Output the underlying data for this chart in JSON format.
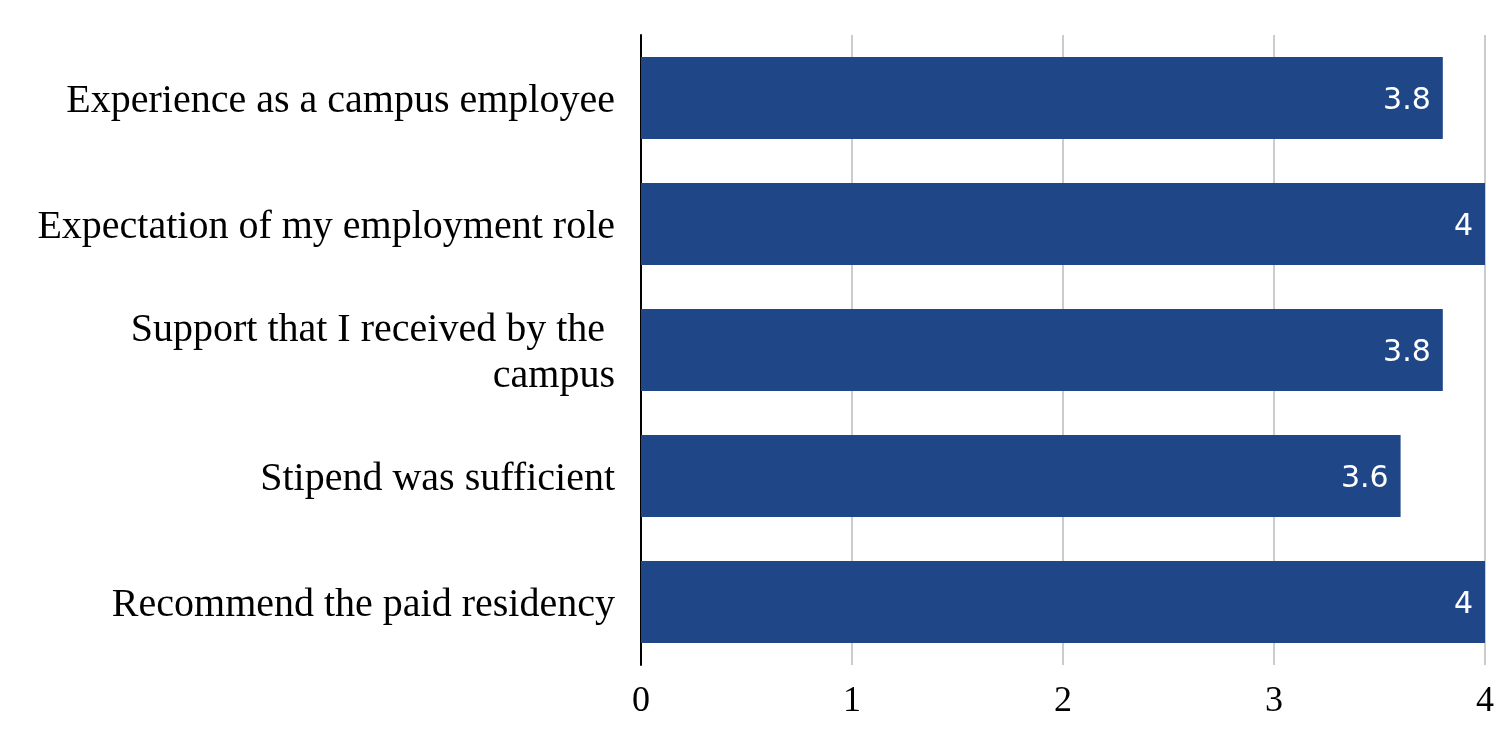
{
  "chart_data": {
    "type": "bar",
    "orientation": "horizontal",
    "categories": [
      "Experience as a campus employee",
      "Expectation of my employment role",
      "Support that I received by the campus",
      "Stipend was sufficient",
      "Recommend the paid residency"
    ],
    "values": [
      3.8,
      4,
      3.8,
      3.6,
      4
    ],
    "color": "#1f4788",
    "xlim": [
      0,
      4
    ],
    "xticks": [
      0,
      1,
      2,
      3,
      4
    ],
    "grid": "x",
    "data_labels": true
  }
}
